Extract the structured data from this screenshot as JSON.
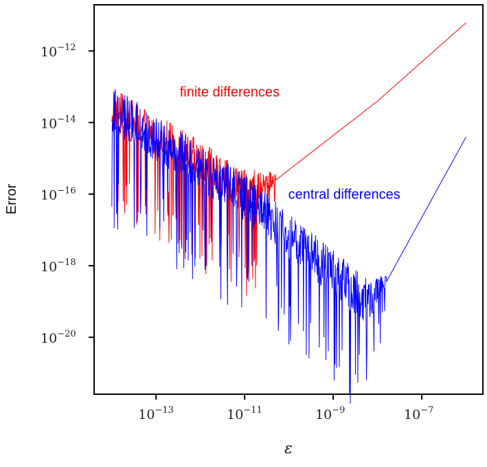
{
  "chart_data": {
    "type": "line",
    "title": "",
    "xlabel": "ε",
    "ylabel": "Error",
    "xscale": "log",
    "yscale": "log",
    "xlim_log10": [
      -14.4,
      -5.62
    ],
    "ylim_log10": [
      -21.59,
      -10.71
    ],
    "grid": false,
    "legend": "none",
    "xticks": [
      {
        "log10": -13,
        "base": "10",
        "exp": "−13"
      },
      {
        "log10": -11,
        "base": "10",
        "exp": "−11"
      },
      {
        "log10": -9,
        "base": "10",
        "exp": "−9"
      },
      {
        "log10": -7,
        "base": "10",
        "exp": "−7"
      }
    ],
    "yticks": [
      {
        "log10": -12,
        "base": "10",
        "exp": "−12"
      },
      {
        "log10": -14,
        "base": "10",
        "exp": "−14"
      },
      {
        "log10": -16,
        "base": "10",
        "exp": "−16"
      },
      {
        "log10": -18,
        "base": "10",
        "exp": "−18"
      },
      {
        "log10": -20,
        "base": "10",
        "exp": "−20"
      }
    ],
    "series": [
      {
        "name": "finite differences",
        "color": "#ff0000",
        "description": "Noisy roundoff error decreasing ~1/eps down to a minimum near eps=1e-11, then truncation error growing linearly (slope 1).",
        "x_log10_range": [
          -14.0,
          -6.0
        ],
        "key_points_log10": [
          [
            -14.0,
            -13.8
          ],
          [
            -12.5,
            -14.9
          ],
          [
            -11.0,
            -16.1
          ],
          [
            -10.5,
            -15.8
          ],
          [
            -8.0,
            -13.4
          ],
          [
            -6.0,
            -11.21
          ]
        ],
        "noise_until_log10": -10.3,
        "noise_amplitude_decades": 1.2,
        "label": {
          "text": "finite differences",
          "x_log10": -12.0,
          "y_log10": -13.0
        }
      },
      {
        "name": "central differences",
        "color": "#0000ff",
        "description": "Noisy roundoff error decreasing ~1/eps down to a minimum near eps=3e-9, then truncation error growing quadratically (slope 2).",
        "x_log10_range": [
          -14.0,
          -6.0
        ],
        "key_points_log10": [
          [
            -14.0,
            -13.8
          ],
          [
            -11.0,
            -16.3
          ],
          [
            -9.0,
            -18.4
          ],
          [
            -8.2,
            -19.2
          ],
          [
            -7.8,
            -18.45
          ],
          [
            -6.0,
            -14.4
          ]
        ],
        "noise_until_log10": -7.8,
        "noise_amplitude_decades": 1.3,
        "label": {
          "text": "central differences",
          "x_log10": -10.0,
          "y_log10": -16.0
        }
      }
    ]
  }
}
